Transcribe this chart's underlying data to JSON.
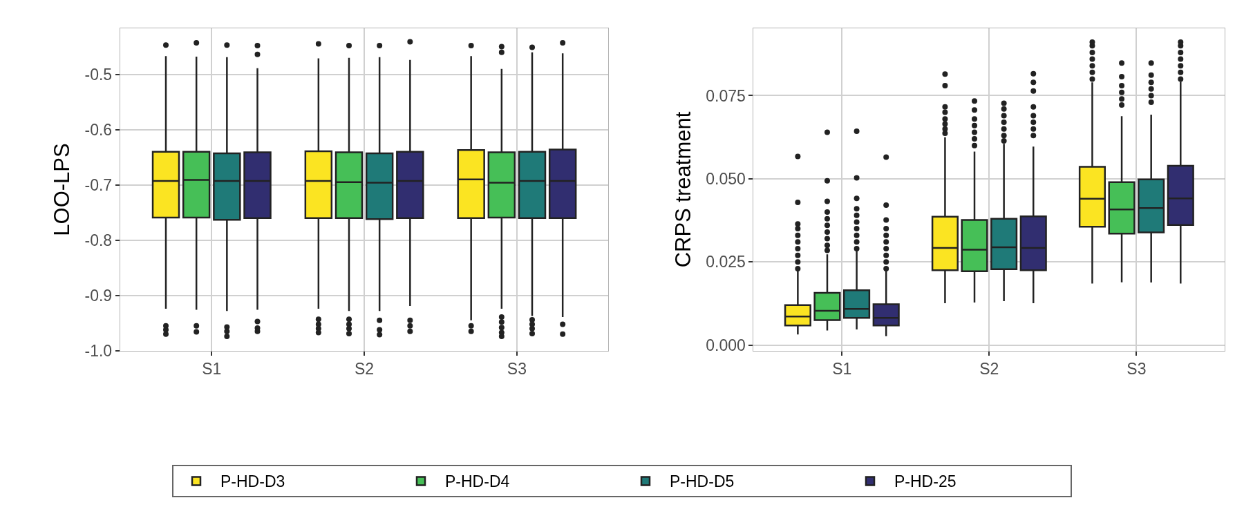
{
  "chart_data": [
    {
      "type": "box",
      "ylabel": "LOO-LPS",
      "categories": [
        "S1",
        "S2",
        "S3"
      ],
      "ylim": [
        -1.0,
        -0.417
      ],
      "yticks": [
        {
          "value": -1.0,
          "label": "-1.0"
        },
        {
          "value": -0.9,
          "label": "-0.9"
        },
        {
          "value": -0.8,
          "label": "-0.8"
        },
        {
          "value": -0.7,
          "label": "-0.7"
        },
        {
          "value": -0.6,
          "label": "-0.6"
        },
        {
          "value": -0.5,
          "label": "-0.5"
        }
      ],
      "grid": true,
      "legend": "bottom",
      "series": [
        {
          "name": "P-HD-D3",
          "color": "#fbe422",
          "boxes": [
            {
              "low": -0.924,
              "q1": -0.759,
              "median": -0.693,
              "q3": -0.64,
              "high": -0.467,
              "outliers": [
                -0.447,
                -0.955,
                -0.962,
                -0.97
              ]
            },
            {
              "low": -0.924,
              "q1": -0.76,
              "median": -0.693,
              "q3": -0.639,
              "high": -0.471,
              "outliers": [
                -0.445,
                -0.943,
                -0.952,
                -0.96,
                -0.967
              ]
            },
            {
              "low": -0.945,
              "q1": -0.76,
              "median": -0.69,
              "q3": -0.637,
              "high": -0.467,
              "outliers": [
                -0.448,
                -0.955,
                -0.965
              ]
            }
          ]
        },
        {
          "name": "P-HD-D4",
          "color": "#46bf57",
          "boxes": [
            {
              "low": -0.926,
              "q1": -0.759,
              "median": -0.691,
              "q3": -0.64,
              "high": -0.468,
              "outliers": [
                -0.443,
                -0.955,
                -0.966
              ]
            },
            {
              "low": -0.928,
              "q1": -0.76,
              "median": -0.695,
              "q3": -0.641,
              "high": -0.47,
              "outliers": [
                -0.448,
                -0.943,
                -0.952,
                -0.96,
                -0.969
              ]
            },
            {
              "low": -0.924,
              "q1": -0.759,
              "median": -0.696,
              "q3": -0.641,
              "high": -0.49,
              "outliers": [
                -0.45,
                -0.46,
                -0.939,
                -0.948,
                -0.958,
                -0.967,
                -0.974
              ]
            }
          ]
        },
        {
          "name": "P-HD-D5",
          "color": "#1f7a78",
          "boxes": [
            {
              "low": -0.928,
              "q1": -0.763,
              "median": -0.693,
              "q3": -0.643,
              "high": -0.469,
              "outliers": [
                -0.447,
                -0.957,
                -0.965,
                -0.974
              ]
            },
            {
              "low": -0.928,
              "q1": -0.762,
              "median": -0.696,
              "q3": -0.643,
              "high": -0.469,
              "outliers": [
                -0.448,
                -0.945,
                -0.962,
                -0.971
              ]
            },
            {
              "low": -0.937,
              "q1": -0.76,
              "median": -0.693,
              "q3": -0.64,
              "high": -0.46,
              "outliers": [
                -0.451,
                -0.944,
                -0.952,
                -0.96,
                -0.969
              ]
            }
          ]
        },
        {
          "name": "P-HD-25",
          "color": "#312e70",
          "boxes": [
            {
              "low": -0.926,
              "q1": -0.76,
              "median": -0.693,
              "q3": -0.641,
              "high": -0.489,
              "outliers": [
                -0.448,
                -0.464,
                -0.947,
                -0.959,
                -0.965
              ]
            },
            {
              "low": -0.919,
              "q1": -0.76,
              "median": -0.693,
              "q3": -0.64,
              "high": -0.474,
              "outliers": [
                -0.441,
                -0.945,
                -0.955,
                -0.965
              ]
            },
            {
              "low": -0.939,
              "q1": -0.76,
              "median": -0.693,
              "q3": -0.636,
              "high": -0.462,
              "outliers": [
                -0.443,
                -0.952,
                -0.97
              ]
            }
          ]
        }
      ]
    },
    {
      "type": "box",
      "ylabel": "CRPS treatment",
      "categories": [
        "S1",
        "S2",
        "S3"
      ],
      "ylim": [
        -0.0017,
        0.0952
      ],
      "yticks": [
        {
          "value": 0,
          "label": "0.000"
        },
        {
          "value": 0.025,
          "label": "0.025"
        },
        {
          "value": 0.05,
          "label": "0.050"
        },
        {
          "value": 0.075,
          "label": "0.075"
        }
      ],
      "grid": true,
      "legend": "bottom",
      "series": [
        {
          "name": "P-HD-D3",
          "color": "#fbe422",
          "boxes": [
            {
              "low": 0.0032,
              "q1": 0.0059,
              "median": 0.0086,
              "q3": 0.012,
              "high": 0.0228,
              "outliers": [
                0.023,
                0.025,
                0.027,
                0.029,
                0.031,
                0.033,
                0.035,
                0.0364,
                0.0429,
                0.0567
              ]
            },
            {
              "low": 0.0126,
              "q1": 0.0225,
              "median": 0.0292,
              "q3": 0.0386,
              "high": 0.0625,
              "outliers": [
                0.0637,
                0.065,
                0.0665,
                0.068,
                0.07,
                0.0716,
                0.078,
                0.0815
              ]
            },
            {
              "low": 0.0185,
              "q1": 0.0356,
              "median": 0.044,
              "q3": 0.0536,
              "high": 0.079,
              "outliers": [
                0.08,
                0.082,
                0.084,
                0.086,
                0.088,
                0.09,
                0.0911
              ]
            }
          ]
        },
        {
          "name": "P-HD-D4",
          "color": "#46bf57",
          "boxes": [
            {
              "low": 0.0044,
              "q1": 0.0075,
              "median": 0.0103,
              "q3": 0.0157,
              "high": 0.0273,
              "outliers": [
                0.0285,
                0.03,
                0.032,
                0.034,
                0.036,
                0.038,
                0.04,
                0.0432,
                0.0494,
                0.064
              ]
            },
            {
              "low": 0.0128,
              "q1": 0.0222,
              "median": 0.0287,
              "q3": 0.0376,
              "high": 0.0582,
              "outliers": [
                0.06,
                0.062,
                0.064,
                0.066,
                0.068,
                0.0707,
                0.0734
              ]
            },
            {
              "low": 0.0189,
              "q1": 0.0335,
              "median": 0.0408,
              "q3": 0.049,
              "high": 0.0688,
              "outliers": [
                0.0722,
                0.074,
                0.076,
                0.078,
                0.0807,
                0.0848
              ]
            }
          ]
        },
        {
          "name": "P-HD-D5",
          "color": "#1f7a78",
          "boxes": [
            {
              "low": 0.0047,
              "q1": 0.0082,
              "median": 0.0109,
              "q3": 0.0165,
              "high": 0.0287,
              "outliers": [
                0.029,
                0.031,
                0.033,
                0.035,
                0.037,
                0.039,
                0.041,
                0.0441,
                0.0503,
                0.0643
              ]
            },
            {
              "low": 0.0132,
              "q1": 0.0228,
              "median": 0.0294,
              "q3": 0.038,
              "high": 0.0605,
              "outliers": [
                0.0614,
                0.063,
                0.065,
                0.067,
                0.069,
                0.071,
                0.0727
              ]
            },
            {
              "low": 0.0188,
              "q1": 0.0339,
              "median": 0.0412,
              "q3": 0.0498,
              "high": 0.0693,
              "outliers": [
                0.073,
                0.075,
                0.077,
                0.079,
                0.0812,
                0.0848
              ]
            }
          ]
        },
        {
          "name": "P-HD-25",
          "color": "#312e70",
          "boxes": [
            {
              "low": 0.0027,
              "q1": 0.0059,
              "median": 0.0082,
              "q3": 0.0123,
              "high": 0.0228,
              "outliers": [
                0.023,
                0.025,
                0.027,
                0.029,
                0.031,
                0.033,
                0.035,
                0.0376,
                0.0421,
                0.0565
              ]
            },
            {
              "low": 0.0126,
              "q1": 0.0225,
              "median": 0.0292,
              "q3": 0.0387,
              "high": 0.0597,
              "outliers": [
                0.063,
                0.065,
                0.067,
                0.069,
                0.0716,
                0.0764,
                0.079,
                0.0816
              ]
            },
            {
              "low": 0.0185,
              "q1": 0.0361,
              "median": 0.0441,
              "q3": 0.0539,
              "high": 0.0792,
              "outliers": [
                0.08,
                0.082,
                0.084,
                0.086,
                0.088,
                0.09,
                0.0911
              ]
            }
          ]
        }
      ]
    }
  ]
}
